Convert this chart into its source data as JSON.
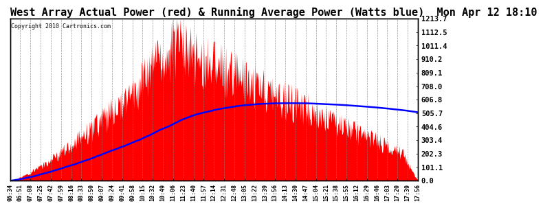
{
  "title": "West Array Actual Power (red) & Running Average Power (Watts blue)  Mon Apr 12 18:10",
  "copyright": "Copyright 2010 Cartronics.com",
  "ylabel_right_ticks": [
    0.0,
    101.1,
    202.3,
    303.4,
    404.6,
    505.7,
    606.8,
    708.0,
    809.1,
    910.2,
    1011.4,
    1112.5,
    1213.7
  ],
  "ymax": 1213.7,
  "ymin": 0.0,
  "background_color": "#ffffff",
  "fill_color": "#ff0000",
  "line_color": "#0000ff",
  "title_fontsize": 11,
  "x_tick_labels": [
    "06:34",
    "06:51",
    "07:08",
    "07:25",
    "07:42",
    "07:59",
    "08:16",
    "08:33",
    "08:50",
    "09:07",
    "09:24",
    "09:41",
    "09:58",
    "10:15",
    "10:32",
    "10:49",
    "11:06",
    "11:23",
    "11:40",
    "11:57",
    "12:14",
    "12:31",
    "12:48",
    "13:05",
    "13:22",
    "13:39",
    "13:56",
    "14:13",
    "14:30",
    "14:47",
    "15:04",
    "15:21",
    "15:38",
    "15:55",
    "16:12",
    "16:29",
    "16:46",
    "17:03",
    "17:20",
    "17:39",
    "17:56"
  ]
}
